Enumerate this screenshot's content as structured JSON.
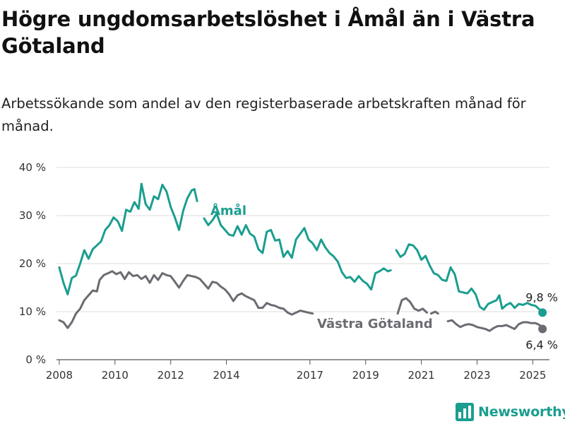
{
  "title": "Högre ungdomsarbetslöshet i Åmål än i Västra Götaland",
  "subtitle": "Arbetssökande som andel av den registerbaserade arbetskraften månad för månad.",
  "brand": {
    "name": "Newsworthy",
    "icon": "newsworthy-bar-chart-logo"
  },
  "colors": {
    "amal": "#1a9e8f",
    "vastra": "#6b6b72",
    "grid": "#dddddd"
  },
  "chart_data": {
    "type": "line",
    "xlim": [
      2007.9,
      2025.6
    ],
    "ylim": [
      0,
      40
    ],
    "y_ticks": [
      {
        "v": 0,
        "label": "0 %"
      },
      {
        "v": 10,
        "label": "10 %"
      },
      {
        "v": 20,
        "label": "20 %"
      },
      {
        "v": 30,
        "label": "30 %"
      },
      {
        "v": 40,
        "label": "40 %"
      }
    ],
    "x_ticks": [
      {
        "v": 2008,
        "label": "2008"
      },
      {
        "v": 2010,
        "label": "2010"
      },
      {
        "v": 2012,
        "label": "2012"
      },
      {
        "v": 2014,
        "label": "2014"
      },
      {
        "v": 2017,
        "label": "2017"
      },
      {
        "v": 2019,
        "label": "2019"
      },
      {
        "v": 2021,
        "label": "2021"
      },
      {
        "v": 2023,
        "label": "2023"
      },
      {
        "v": 2025,
        "label": "2025"
      }
    ],
    "series": [
      {
        "name": "Åmål",
        "end_label": "9,8 %",
        "end_value": 9.8,
        "points": [
          [
            2008.0,
            19.2
          ],
          [
            2008.15,
            16
          ],
          [
            2008.3,
            13.6
          ],
          [
            2008.45,
            17
          ],
          [
            2008.6,
            17.5
          ],
          [
            2008.75,
            20
          ],
          [
            2008.9,
            22.8
          ],
          [
            2009.05,
            21
          ],
          [
            2009.2,
            23
          ],
          [
            2009.35,
            23.8
          ],
          [
            2009.5,
            24.6
          ],
          [
            2009.65,
            27
          ],
          [
            2009.8,
            28
          ],
          [
            2009.95,
            29.6
          ],
          [
            2010.1,
            28.8
          ],
          [
            2010.25,
            26.8
          ],
          [
            2010.4,
            31.2
          ],
          [
            2010.55,
            30.8
          ],
          [
            2010.7,
            32.8
          ],
          [
            2010.85,
            31.4
          ],
          [
            2010.95,
            36.6
          ],
          [
            2011.1,
            32.4
          ],
          [
            2011.25,
            31.2
          ],
          [
            2011.4,
            34
          ],
          [
            2011.55,
            33.4
          ],
          [
            2011.7,
            36.4
          ],
          [
            2011.85,
            35
          ],
          [
            2012.0,
            31.8
          ],
          [
            2012.15,
            29.6
          ],
          [
            2012.3,
            27
          ],
          [
            2012.45,
            31
          ],
          [
            2012.6,
            33.6
          ],
          [
            2012.75,
            35.2
          ],
          [
            2012.85,
            35.5
          ],
          [
            2012.95,
            33
          ],
          [
            null,
            null
          ],
          [
            2013.2,
            29.4
          ],
          [
            2013.35,
            28
          ],
          [
            2013.5,
            29
          ],
          [
            2013.65,
            30.4
          ],
          [
            2013.8,
            28
          ],
          [
            2013.95,
            27
          ],
          [
            2014.1,
            26
          ],
          [
            2014.25,
            25.8
          ],
          [
            2014.4,
            27.8
          ],
          [
            2014.55,
            26
          ],
          [
            2014.7,
            28
          ],
          [
            2014.85,
            26.2
          ],
          [
            2015.0,
            25.6
          ],
          [
            2015.15,
            23
          ],
          [
            2015.3,
            22.2
          ],
          [
            2015.45,
            26.6
          ],
          [
            2015.6,
            27
          ],
          [
            2015.75,
            24.8
          ],
          [
            2015.9,
            25
          ],
          [
            2016.05,
            21.4
          ],
          [
            2016.2,
            22.6
          ],
          [
            2016.35,
            21.2
          ],
          [
            2016.5,
            25
          ],
          [
            2016.65,
            26.2
          ],
          [
            2016.8,
            27.4
          ],
          [
            2016.95,
            25
          ],
          [
            2017.1,
            24.2
          ],
          [
            2017.25,
            22.8
          ],
          [
            2017.4,
            25
          ],
          [
            2017.55,
            23.4
          ],
          [
            2017.7,
            22.2
          ],
          [
            2017.85,
            21.5
          ],
          [
            2018.0,
            20.4
          ],
          [
            2018.15,
            18.2
          ],
          [
            2018.3,
            17
          ],
          [
            2018.45,
            17.2
          ],
          [
            2018.6,
            16.2
          ],
          [
            2018.75,
            17.4
          ],
          [
            2018.9,
            16.4
          ],
          [
            2019.05,
            15.8
          ],
          [
            2019.2,
            14.6
          ],
          [
            2019.35,
            18
          ],
          [
            2019.5,
            18.4
          ],
          [
            2019.65,
            19
          ],
          [
            2019.8,
            18.4
          ],
          [
            2019.9,
            18.6
          ],
          [
            null,
            null
          ],
          [
            2020.1,
            22.8
          ],
          [
            2020.25,
            21.4
          ],
          [
            2020.4,
            22
          ],
          [
            2020.55,
            24
          ],
          [
            2020.7,
            23.8
          ],
          [
            2020.85,
            22.8
          ],
          [
            2021.0,
            20.8
          ],
          [
            2021.15,
            21.6
          ],
          [
            2021.3,
            19.6
          ],
          [
            2021.45,
            18
          ],
          [
            2021.6,
            17.6
          ],
          [
            2021.75,
            16.6
          ],
          [
            2021.9,
            16.4
          ],
          [
            2022.05,
            19.2
          ],
          [
            2022.2,
            17.8
          ],
          [
            2022.35,
            14.2
          ],
          [
            2022.5,
            14
          ],
          [
            2022.65,
            13.8
          ],
          [
            2022.8,
            14.8
          ],
          [
            2022.95,
            13.6
          ],
          [
            2023.1,
            11
          ],
          [
            2023.25,
            10.4
          ],
          [
            2023.4,
            11.6
          ],
          [
            2023.55,
            12
          ],
          [
            2023.7,
            12.4
          ],
          [
            2023.8,
            13.4
          ],
          [
            2023.9,
            10.6
          ],
          [
            2024.05,
            11.4
          ],
          [
            2024.2,
            11.8
          ],
          [
            2024.35,
            10.8
          ],
          [
            2024.5,
            11.6
          ],
          [
            2024.65,
            11.4
          ],
          [
            2024.8,
            11.8
          ],
          [
            2024.95,
            11.4
          ],
          [
            2025.1,
            11.2
          ],
          [
            2025.25,
            10.4
          ],
          [
            2025.35,
            9.8
          ]
        ]
      },
      {
        "name": "Västra Götaland",
        "end_label": "6,4 %",
        "end_value": 6.4,
        "points": [
          [
            2008.0,
            8.2
          ],
          [
            2008.15,
            7.8
          ],
          [
            2008.3,
            6.6
          ],
          [
            2008.45,
            7.8
          ],
          [
            2008.6,
            9.6
          ],
          [
            2008.75,
            10.6
          ],
          [
            2008.9,
            12.4
          ],
          [
            2009.05,
            13.4
          ],
          [
            2009.2,
            14.4
          ],
          [
            2009.35,
            14.2
          ],
          [
            2009.45,
            16.6
          ],
          [
            2009.6,
            17.6
          ],
          [
            2009.75,
            18
          ],
          [
            2009.9,
            18.4
          ],
          [
            2010.05,
            17.8
          ],
          [
            2010.2,
            18.2
          ],
          [
            2010.35,
            16.8
          ],
          [
            2010.5,
            18.2
          ],
          [
            2010.65,
            17.4
          ],
          [
            2010.8,
            17.6
          ],
          [
            2010.95,
            16.8
          ],
          [
            2011.1,
            17.4
          ],
          [
            2011.25,
            16
          ],
          [
            2011.4,
            17.6
          ],
          [
            2011.55,
            16.6
          ],
          [
            2011.7,
            18
          ],
          [
            2011.85,
            17.6
          ],
          [
            2012.0,
            17.4
          ],
          [
            2012.15,
            16.2
          ],
          [
            2012.3,
            15
          ],
          [
            2012.45,
            16.4
          ],
          [
            2012.6,
            17.6
          ],
          [
            2012.75,
            17.4
          ],
          [
            2012.9,
            17.2
          ],
          [
            2013.05,
            16.8
          ],
          [
            2013.2,
            15.8
          ],
          [
            2013.35,
            14.8
          ],
          [
            2013.5,
            16.2
          ],
          [
            2013.65,
            16
          ],
          [
            2013.8,
            15.2
          ],
          [
            2013.95,
            14.6
          ],
          [
            2014.1,
            13.6
          ],
          [
            2014.25,
            12.2
          ],
          [
            2014.4,
            13.4
          ],
          [
            2014.55,
            13.8
          ],
          [
            2014.7,
            13.2
          ],
          [
            2014.85,
            12.8
          ],
          [
            2015.0,
            12.4
          ],
          [
            2015.15,
            10.8
          ],
          [
            2015.3,
            10.8
          ],
          [
            2015.45,
            11.8
          ],
          [
            2015.6,
            11.4
          ],
          [
            2015.75,
            11.2
          ],
          [
            2015.9,
            10.8
          ],
          [
            2016.05,
            10.6
          ],
          [
            2016.2,
            9.8
          ],
          [
            2016.35,
            9.4
          ],
          [
            2016.5,
            9.8
          ],
          [
            2016.65,
            10.2
          ],
          [
            2016.8,
            10
          ],
          [
            2016.95,
            9.8
          ],
          [
            2017.1,
            9.6
          ],
          [
            null,
            null
          ],
          [
            2020.15,
            9.6
          ],
          [
            2020.3,
            12.4
          ],
          [
            2020.45,
            12.8
          ],
          [
            2020.6,
            12
          ],
          [
            2020.75,
            10.6
          ],
          [
            2020.9,
            10.2
          ],
          [
            2021.05,
            10.6
          ],
          [
            2021.2,
            9.8
          ],
          [
            null,
            null
          ],
          [
            2021.35,
            9.6
          ],
          [
            2021.5,
            10
          ],
          [
            2021.6,
            9.6
          ],
          [
            null,
            null
          ],
          [
            2021.95,
            8
          ],
          [
            2022.1,
            8.2
          ],
          [
            2022.25,
            7.4
          ],
          [
            2022.4,
            6.8
          ],
          [
            2022.55,
            7.2
          ],
          [
            2022.7,
            7.4
          ],
          [
            2022.85,
            7.2
          ],
          [
            2023.0,
            6.8
          ],
          [
            2023.15,
            6.6
          ],
          [
            2023.3,
            6.4
          ],
          [
            2023.45,
            6
          ],
          [
            2023.6,
            6.6
          ],
          [
            2023.75,
            7
          ],
          [
            2023.9,
            7
          ],
          [
            2024.05,
            7.2
          ],
          [
            2024.2,
            6.8
          ],
          [
            2024.35,
            6.4
          ],
          [
            2024.5,
            7.4
          ],
          [
            2024.65,
            7.8
          ],
          [
            2024.8,
            7.8
          ],
          [
            2024.95,
            7.6
          ],
          [
            2025.1,
            7.6
          ],
          [
            2025.25,
            7.2
          ],
          [
            2025.35,
            6.4
          ]
        ]
      }
    ],
    "annotations": {
      "amal_label": "Åmål",
      "vastra_label": "Västra Götaland"
    }
  }
}
